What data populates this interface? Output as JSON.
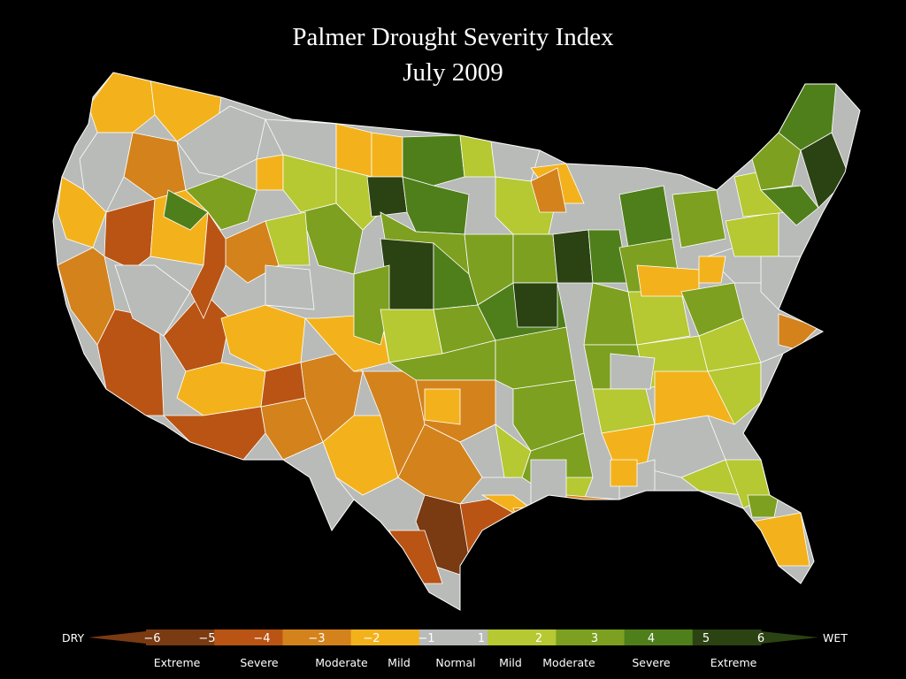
{
  "title": "Palmer Drought Severity Index",
  "subtitle": "July 2009",
  "legend": {
    "dry_label": "DRY",
    "wet_label": "WET",
    "ticks": [
      "−6",
      "−5",
      "−4",
      "−3",
      "−2",
      "−1",
      "1",
      "2",
      "3",
      "4",
      "5",
      "6"
    ],
    "categories": [
      "Extreme",
      "Severe",
      "Moderate",
      "Mild",
      "Normal",
      "Mild",
      "Moderate",
      "Severe",
      "Extreme"
    ],
    "colors": {
      "dry_extreme": "#7a3a12",
      "dry_severe": "#b95414",
      "dry_moderate": "#d4821c",
      "dry_mild": "#f3b21c",
      "normal": "#b8bbb8",
      "wet_mild": "#b6c832",
      "wet_moderate": "#7da020",
      "wet_severe": "#4f7f1a",
      "wet_extreme": "#2b4212"
    }
  }
}
